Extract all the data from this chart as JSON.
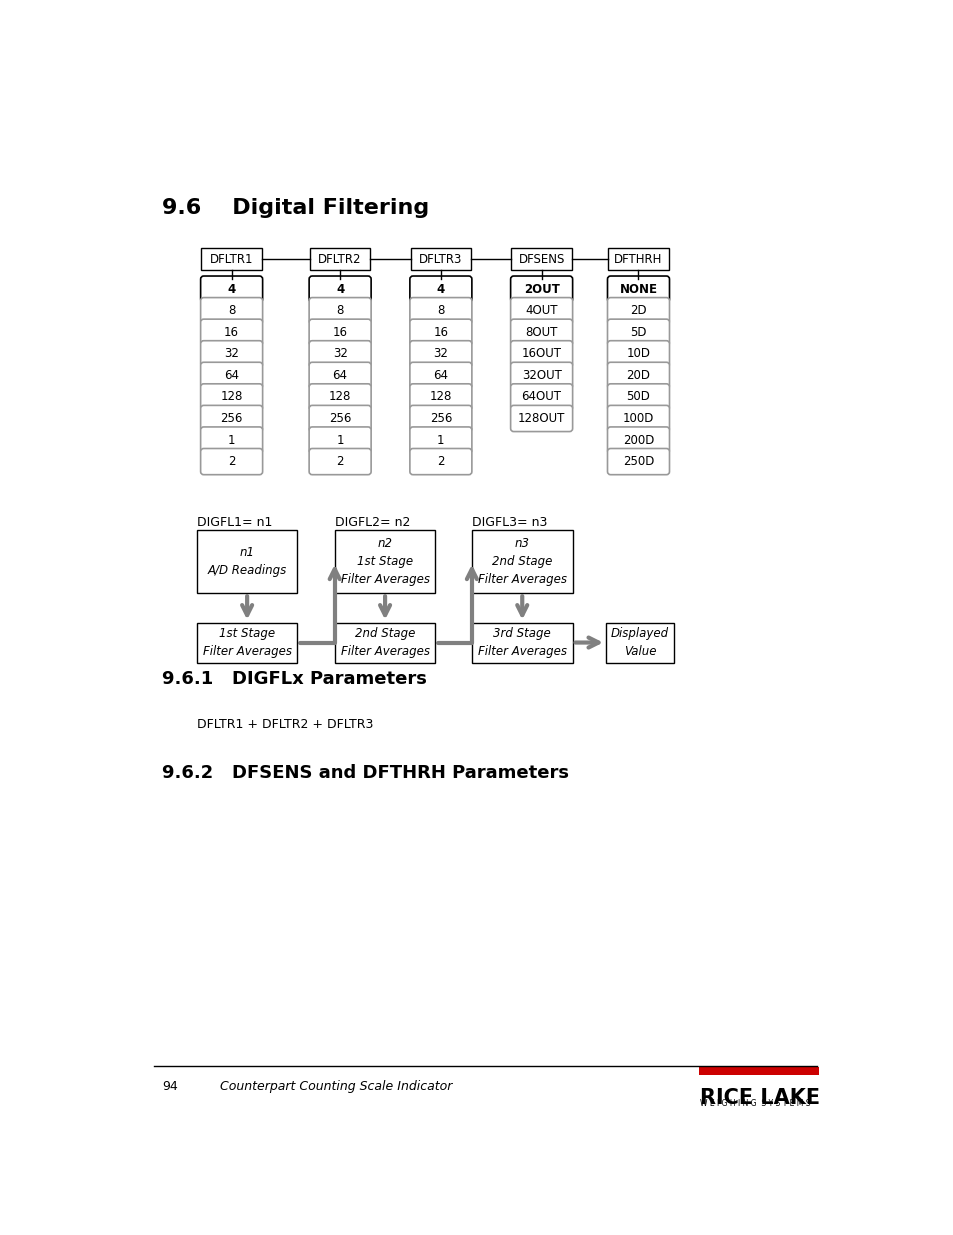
{
  "title_section": "9.6    Digital Filtering",
  "subsection1": "9.6.1   DIGFLx Parameters",
  "subsection2": "9.6.2   DFSENS and DFTHRH Parameters",
  "formula_text": "DFLTR1 + DFLTR2 + DFLTR3",
  "footer_page": "94",
  "footer_text": "Counterpart Counting Scale Indicator",
  "col_headers": [
    "DFLTR1",
    "DFLTR2",
    "DFLTR3",
    "DFSENS",
    "DFTHRH"
  ],
  "col1_values": [
    "4",
    "8",
    "16",
    "32",
    "64",
    "128",
    "256",
    "1",
    "2"
  ],
  "col2_values": [
    "4",
    "8",
    "16",
    "32",
    "64",
    "128",
    "256",
    "1",
    "2"
  ],
  "col3_values": [
    "4",
    "8",
    "16",
    "32",
    "64",
    "128",
    "256",
    "1",
    "2"
  ],
  "col4_values": [
    "2OUT",
    "4OUT",
    "8OUT",
    "16OUT",
    "32OUT",
    "64OUT",
    "128OUT"
  ],
  "col5_values": [
    "NONE",
    "2D",
    "5D",
    "10D",
    "20D",
    "50D",
    "100D",
    "200D",
    "250D"
  ],
  "col1_bold": [
    true,
    false,
    false,
    false,
    false,
    false,
    false,
    false,
    false
  ],
  "col4_bold": [
    true,
    false,
    false,
    false,
    false,
    false,
    false
  ],
  "col5_bold": [
    true,
    false,
    false,
    false,
    false,
    false,
    false,
    false,
    false
  ],
  "digfl1_label": "DIGFL1= n1",
  "digfl2_label": "DIGFL2= n2",
  "digfl3_label": "DIGFL3= n3",
  "flow_box0_label": "n1\nA/D Readings",
  "flow_box1_label": "n2\n1st Stage\nFilter Averages",
  "flow_box2_label": "n3\n2nd Stage\nFilter Averages",
  "stage_box0_label": "1st Stage\nFilter Averages",
  "stage_box1_label": "2nd Stage\nFilter Averages",
  "stage_box2_label": "3rd Stage\nFilter Averages",
  "stage_box3_label": "Displayed\nValue",
  "bg_color": "#ffffff",
  "arrow_color": "#808080",
  "pill_border_color": "#999999",
  "first_pill_border_color": "#000000"
}
